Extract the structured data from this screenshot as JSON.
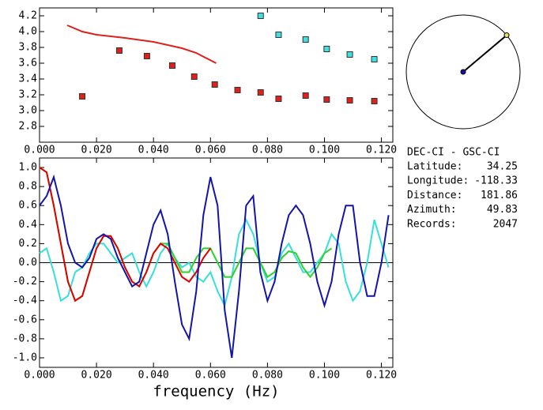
{
  "chart_data": [
    {
      "type": "scatter",
      "xlim": [
        0,
        0.124
      ],
      "xticks": [
        {
          "value": 0,
          "label": "0.000"
        },
        {
          "value": 0.02,
          "label": "0.020"
        },
        {
          "value": 0.04,
          "label": "0.040"
        },
        {
          "value": 0.06,
          "label": "0.060"
        },
        {
          "value": 0.08,
          "label": "0.080"
        },
        {
          "value": 0.1,
          "label": "0.100"
        },
        {
          "value": 0.12,
          "label": "0.120"
        }
      ],
      "ylim": [
        2.6,
        4.3
      ],
      "yticks": [
        2.8,
        {
          "value": 3,
          "label": "3.0"
        },
        3.2,
        3.4,
        3.6,
        3.8,
        {
          "value": 4,
          "label": "4.0"
        },
        4.2
      ],
      "series": [
        {
          "type": "scatter",
          "color": "#e0201a",
          "x": [
            0.015,
            0.028,
            0.0377,
            0.0466,
            0.0543,
            0.0615,
            0.0695,
            0.0776,
            0.0839,
            0.0934,
            0.1008,
            0.1089,
            0.1175
          ],
          "values": [
            3.18,
            3.76,
            3.69,
            3.57,
            3.43,
            3.33,
            3.26,
            3.23,
            3.15,
            3.19,
            3.14,
            3.13,
            3.12
          ]
        },
        {
          "type": "scatter",
          "color": "#40e0e0",
          "x": [
            0.0776,
            0.0839,
            0.0934,
            0.1008,
            0.1089,
            0.1175
          ],
          "values": [
            4.2,
            3.96,
            3.9,
            3.78,
            3.71,
            3.65
          ]
        },
        {
          "type": "line",
          "color": "#e0201a",
          "x": [
            0.0097,
            0.015,
            0.02,
            0.03,
            0.04,
            0.05,
            0.055,
            0.062
          ],
          "values": [
            4.08,
            4.0,
            3.96,
            3.92,
            3.87,
            3.79,
            3.73,
            3.6
          ]
        }
      ]
    },
    {
      "type": "line",
      "xlabel": "frequency (Hz)",
      "xlim": [
        0,
        0.124
      ],
      "xticks": [
        {
          "value": 0,
          "label": "0.000"
        },
        {
          "value": 0.02,
          "label": "0.020"
        },
        {
          "value": 0.04,
          "label": "0.040"
        },
        {
          "value": 0.06,
          "label": "0.060"
        },
        {
          "value": 0.08,
          "label": "0.080"
        },
        {
          "value": 0.1,
          "label": "0.100"
        },
        {
          "value": 0.12,
          "label": "0.120"
        }
      ],
      "ylim": [
        -1.1,
        1.1
      ],
      "yticks": [
        {
          "value": -1,
          "label": "-1.0"
        },
        -0.8,
        -0.6,
        -0.4,
        -0.2,
        {
          "value": 0,
          "label": "0.0"
        },
        0.2,
        0.4,
        0.6,
        0.8,
        {
          "value": 1,
          "label": "1.0"
        }
      ],
      "x": [
        0,
        0.0025,
        0.005,
        0.0075,
        0.01,
        0.0125,
        0.015,
        0.0175,
        0.02,
        0.0225,
        0.025,
        0.0275,
        0.03,
        0.0325,
        0.035,
        0.0375,
        0.04,
        0.0425,
        0.045,
        0.0475,
        0.05,
        0.0525,
        0.055,
        0.0575,
        0.06,
        0.0625,
        0.065,
        0.0675,
        0.07,
        0.0725,
        0.075,
        0.0775,
        0.08,
        0.0825,
        0.085,
        0.0875,
        0.09,
        0.0925,
        0.095,
        0.0975,
        0.1,
        0.1025,
        0.105,
        0.1075,
        0.11,
        0.1125,
        0.115,
        0.1175,
        0.12,
        0.1225
      ],
      "series": [
        {
          "color": "#38dede",
          "values": [
            0.1,
            0.15,
            -0.1,
            -0.4,
            -0.35,
            -0.1,
            -0.05,
            0.1,
            0.2,
            0.2,
            0.1,
            0.0,
            0.05,
            0.1,
            -0.1,
            -0.25,
            -0.1,
            0.1,
            0.2,
            0.05,
            -0.05,
            0.0,
            -0.15,
            -0.2,
            -0.1,
            -0.3,
            -0.45,
            -0.15,
            0.3,
            0.45,
            0.3,
            0.0,
            -0.2,
            -0.15,
            0.1,
            0.2,
            0.05,
            -0.1,
            -0.1,
            0.0,
            0.1,
            0.3,
            0.2,
            -0.2,
            -0.4,
            -0.3,
            0.0,
            0.45,
            0.2,
            -0.05
          ]
        },
        {
          "color": "#2ed12e",
          "values": [
            1.0,
            0.95,
            0.6,
            0.2,
            -0.2,
            -0.4,
            -0.35,
            -0.1,
            0.15,
            0.28,
            0.28,
            0.15,
            -0.05,
            -0.2,
            -0.25,
            -0.1,
            0.1,
            0.2,
            0.2,
            0.05,
            -0.1,
            -0.1,
            0.05,
            0.15,
            0.15,
            0.0,
            -0.15,
            -0.15,
            0.0,
            0.15,
            0.15,
            0.0,
            -0.15,
            -0.1,
            0.05,
            0.12,
            0.1,
            -0.05,
            -0.15,
            -0.05,
            0.1,
            0.15,
            null,
            null,
            null,
            null,
            null,
            null,
            null,
            null
          ]
        },
        {
          "color": "#e00000",
          "values": [
            1.0,
            0.95,
            0.6,
            0.2,
            -0.2,
            -0.4,
            -0.35,
            -0.1,
            0.15,
            0.28,
            0.28,
            0.15,
            -0.05,
            -0.2,
            -0.25,
            -0.1,
            0.1,
            0.2,
            0.15,
            0.0,
            -0.15,
            -0.2,
            -0.1,
            0.05,
            0.15,
            null,
            null,
            null,
            null,
            null,
            null,
            null,
            null,
            null,
            null,
            null,
            null,
            null,
            null,
            null,
            null,
            null,
            null,
            null,
            null,
            null,
            null,
            null,
            null,
            null
          ]
        },
        {
          "color": "#1414a8",
          "values": [
            0.6,
            0.7,
            0.9,
            0.6,
            0.2,
            0.0,
            -0.05,
            0.05,
            0.25,
            0.3,
            0.25,
            0.05,
            -0.1,
            -0.25,
            -0.2,
            0.1,
            0.4,
            0.55,
            0.3,
            -0.2,
            -0.65,
            -0.8,
            -0.3,
            0.5,
            0.9,
            0.6,
            -0.5,
            -1.0,
            -0.3,
            0.6,
            0.7,
            -0.1,
            -0.4,
            -0.2,
            0.2,
            0.5,
            0.6,
            0.5,
            0.2,
            -0.2,
            -0.45,
            -0.2,
            0.3,
            0.6,
            0.6,
            0.0,
            -0.35,
            -0.35,
            0.0,
            0.5
          ]
        }
      ]
    }
  ],
  "info": {
    "title": "DEC-CI - GSC-CI",
    "rows": [
      {
        "label": "Latitude:",
        "value": 34.25
      },
      {
        "label": "Longitude:",
        "value": -118.33
      },
      {
        "label": "Distance:",
        "value": 181.86
      },
      {
        "label": "Azimuth:",
        "value": 49.83
      },
      {
        "label": "Records:",
        "value": 2047
      }
    ]
  }
}
